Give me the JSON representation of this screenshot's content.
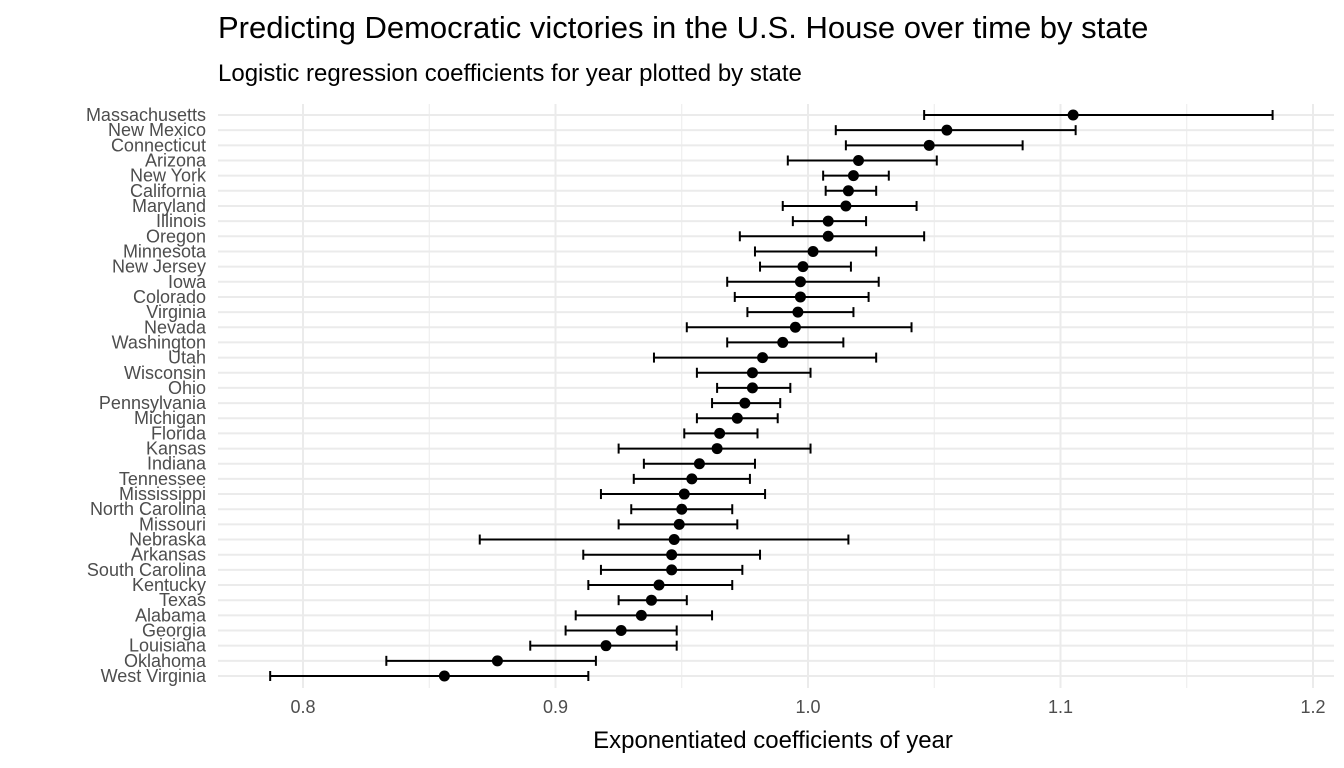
{
  "chart_data": {
    "type": "scatter",
    "subtype": "point-range",
    "title": "Predicting Democratic victories in the U.S. House over time by state",
    "subtitle": "Logistic regression coefficients for year plotted by state",
    "xlabel": "Exponentiated coefficients of year",
    "ylabel": "",
    "xlim": [
      0.787,
      1.2
    ],
    "xticks": [
      0.8,
      0.9,
      1.0,
      1.1,
      1.2
    ],
    "xtick_labels": [
      "0.8",
      "0.9",
      "1.0",
      "1.1",
      "1.2"
    ],
    "grid": true,
    "legend": "none",
    "point_color": "#000000",
    "grid_major_color": "#ebebeb",
    "categories": [
      "Massachusetts",
      "New Mexico",
      "Connecticut",
      "Arizona",
      "New York",
      "California",
      "Maryland",
      "Illinois",
      "Oregon",
      "Minnesota",
      "New Jersey",
      "Iowa",
      "Colorado",
      "Virginia",
      "Nevada",
      "Washington",
      "Utah",
      "Wisconsin",
      "Ohio",
      "Pennsylvania",
      "Michigan",
      "Florida",
      "Kansas",
      "Indiana",
      "Tennessee",
      "Mississippi",
      "North Carolina",
      "Missouri",
      "Nebraska",
      "Arkansas",
      "South Carolina",
      "Kentucky",
      "Texas",
      "Alabama",
      "Georgia",
      "Louisiana",
      "Oklahoma",
      "West Virginia"
    ],
    "values": [
      1.105,
      1.055,
      1.048,
      1.02,
      1.018,
      1.016,
      1.015,
      1.008,
      1.008,
      1.002,
      0.998,
      0.997,
      0.997,
      0.996,
      0.995,
      0.99,
      0.982,
      0.978,
      0.978,
      0.975,
      0.972,
      0.965,
      0.964,
      0.957,
      0.954,
      0.951,
      0.95,
      0.949,
      0.947,
      0.946,
      0.946,
      0.941,
      0.938,
      0.934,
      0.926,
      0.92,
      0.877,
      0.856
    ],
    "lower": [
      1.046,
      1.011,
      1.015,
      0.992,
      1.006,
      1.007,
      0.99,
      0.994,
      0.973,
      0.979,
      0.981,
      0.968,
      0.971,
      0.976,
      0.952,
      0.968,
      0.939,
      0.956,
      0.964,
      0.962,
      0.956,
      0.951,
      0.925,
      0.935,
      0.931,
      0.918,
      0.93,
      0.925,
      0.87,
      0.911,
      0.918,
      0.913,
      0.925,
      0.908,
      0.904,
      0.89,
      0.833,
      0.787
    ],
    "upper": [
      1.184,
      1.106,
      1.085,
      1.051,
      1.032,
      1.027,
      1.043,
      1.023,
      1.046,
      1.027,
      1.017,
      1.028,
      1.024,
      1.018,
      1.041,
      1.014,
      1.027,
      1.001,
      0.993,
      0.989,
      0.988,
      0.98,
      1.001,
      0.979,
      0.977,
      0.983,
      0.97,
      0.972,
      1.016,
      0.981,
      0.974,
      0.97,
      0.952,
      0.962,
      0.948,
      0.948,
      0.916,
      0.913
    ]
  }
}
